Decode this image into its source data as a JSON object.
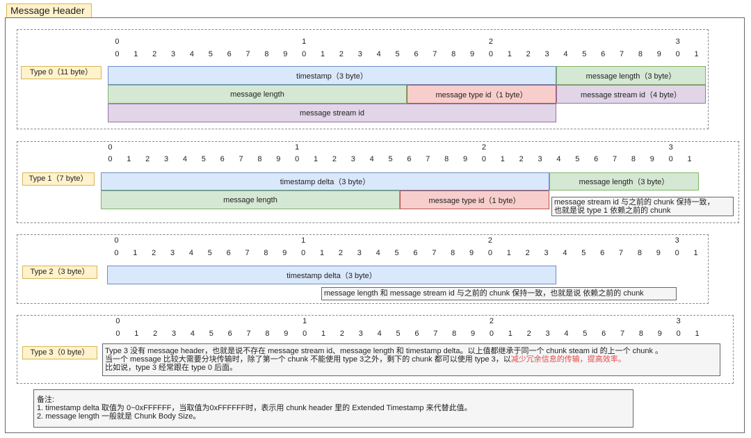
{
  "title": "Message Header",
  "tick_tens": [
    "0",
    "1",
    "2",
    "3"
  ],
  "tick_units": [
    "0",
    "1",
    "2",
    "3",
    "4",
    "5",
    "6",
    "7",
    "8",
    "9",
    "0",
    "1",
    "2",
    "3",
    "4",
    "5",
    "6",
    "7",
    "8",
    "9",
    "0",
    "1",
    "2",
    "3",
    "4",
    "5",
    "6",
    "7",
    "8",
    "9",
    "0",
    "1"
  ],
  "type0": {
    "label": "Type 0（11 byte）",
    "timestamp": "timestamp（3 byte）",
    "message_length_3": "message length（3 byte）",
    "message_length": "message length",
    "message_type_id": "message type id（1 byte）",
    "message_stream_id_4": "message stream id（4 byte）",
    "message_stream_id": "message stream id"
  },
  "type1": {
    "label": "Type 1（7 byte）",
    "timestamp_delta": "timestamp delta（3 byte）",
    "message_length_3": "message length（3 byte）",
    "message_length": "message length",
    "message_type_id": "message type id（1 byte）",
    "note_line1": "message stream id 与之前的 chunk 保持一致，",
    "note_line2": "也就是说 type 1 依赖之前的 chunk"
  },
  "type2": {
    "label": "Type 2（3 byte）",
    "timestamp_delta": "timestamp delta（3 byte）",
    "note": "message length 和 message stream id 与之前的 chunk 保持一致，也就是说 依赖之前的 chunk"
  },
  "type3": {
    "label": "Type 3（0 byte）",
    "note_line1": "Type 3 没有 message header，也就是说不存在 message stream id、message length 和 timestamp delta。以上值都继承于同一个 chunk steam id 的上一个 chunk 。",
    "note_line2a": "当一个 message 比较大需要分块传输时，除了第一个 chunk 不能使用 type 3之外，剩下的 chunk 都可以使用 type 3，以",
    "note_line2b": "减少冗余信息的传输，提高效率。",
    "note_line3": "比如说，type 3 经常跟在 type 0 后面。",
    "highlight_color": "#e04b4b"
  },
  "remarks": {
    "heading": "备注:",
    "line1": "1. timestamp delta 取值为 0~0xFFFFFF，当取值为0xFFFFFF时，表示用 chunk header 里的 Extended Timestamp 来代替此值。",
    "line2": "2. message length 一般就是 Chunk Body Size。"
  },
  "colors": {
    "timestamp": "#dae8fc",
    "length": "#d5e8d4",
    "type_id": "#f8cecc",
    "stream_id": "#e1d5e7",
    "label": "#fff2cc"
  }
}
